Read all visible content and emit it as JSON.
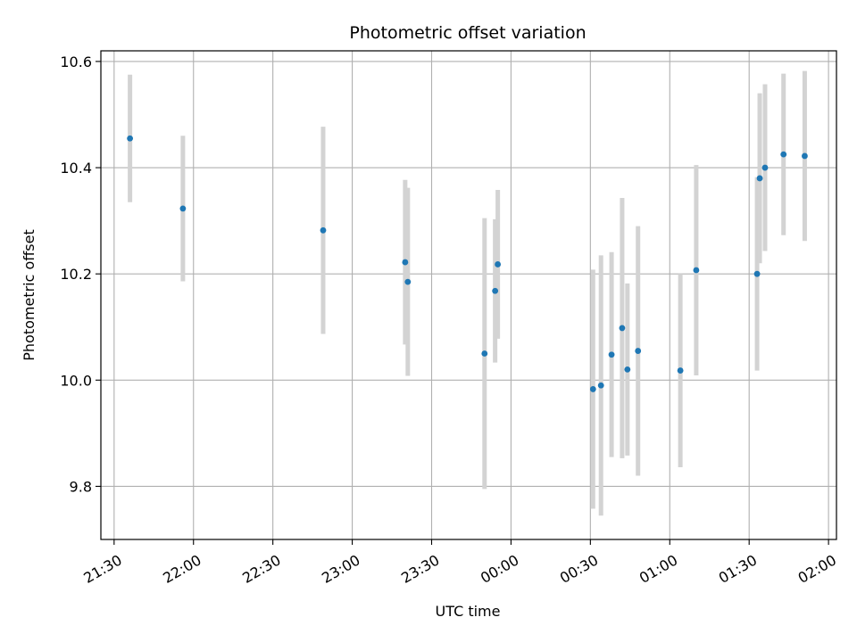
{
  "chart_data": {
    "type": "scatter",
    "title": "Photometric offset variation",
    "xlabel": "UTC time",
    "ylabel": "Photometric offset",
    "grid": true,
    "xlim": [
      "21:25",
      "02:03"
    ],
    "ylim": [
      9.7,
      10.62
    ],
    "xticks": [
      "21:30",
      "22:00",
      "22:30",
      "23:00",
      "23:30",
      "00:00",
      "00:30",
      "01:00",
      "01:30",
      "02:00"
    ],
    "yticks": [
      "9.8",
      "10.0",
      "10.2",
      "10.4",
      "10.6"
    ],
    "point_color": "#1f77b4",
    "errorbar_color": "#d3d3d3",
    "points": [
      {
        "x": "21:36",
        "y": 10.455,
        "yerr": 0.12
      },
      {
        "x": "21:56",
        "y": 10.323,
        "yerr": 0.137
      },
      {
        "x": "22:49",
        "y": 10.282,
        "yerr": 0.195
      },
      {
        "x": "23:20",
        "y": 10.222,
        "yerr": 0.155
      },
      {
        "x": "23:21",
        "y": 10.185,
        "yerr": 0.177
      },
      {
        "x": "23:50",
        "y": 10.05,
        "yerr": 0.255
      },
      {
        "x": "23:54",
        "y": 10.168,
        "yerr": 0.135
      },
      {
        "x": "23:55",
        "y": 10.218,
        "yerr": 0.14
      },
      {
        "x": "00:31",
        "y": 9.983,
        "yerr": 0.225
      },
      {
        "x": "00:34",
        "y": 9.99,
        "yerr": 0.245
      },
      {
        "x": "00:38",
        "y": 10.048,
        "yerr": 0.193
      },
      {
        "x": "00:42",
        "y": 10.098,
        "yerr": 0.245
      },
      {
        "x": "00:44",
        "y": 10.02,
        "yerr": 0.162
      },
      {
        "x": "00:48",
        "y": 10.055,
        "yerr": 0.235
      },
      {
        "x": "01:04",
        "y": 10.018,
        "yerr": 0.182
      },
      {
        "x": "01:10",
        "y": 10.207,
        "yerr": 0.198
      },
      {
        "x": "01:33",
        "y": 10.2,
        "yerr": 0.182
      },
      {
        "x": "01:34",
        "y": 10.38,
        "yerr": 0.16
      },
      {
        "x": "01:36",
        "y": 10.4,
        "yerr": 0.157
      },
      {
        "x": "01:43",
        "y": 10.425,
        "yerr": 0.152
      },
      {
        "x": "01:51",
        "y": 10.422,
        "yerr": 0.16
      }
    ]
  }
}
